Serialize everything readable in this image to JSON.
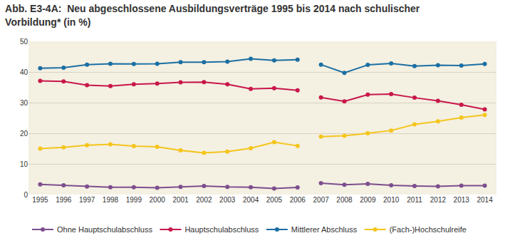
{
  "chart_data": {
    "type": "line",
    "title": [
      "Abb. E3-4A:  Neu abgeschlossene Ausbildungsverträge 1995 bis 2014 nach schulischer",
      "Vorbildung* (in %)"
    ],
    "categories": [
      "1995",
      "1996",
      "1997",
      "1998",
      "1999",
      "2000",
      "2001",
      "2002",
      "2003",
      "2004",
      "2005",
      "2006",
      "2007",
      "2008",
      "2009",
      "2010",
      "2011",
      "2012",
      "2013",
      "2014"
    ],
    "series": [
      {
        "name": "Ohne Hauptschulabschluss",
        "color": "#7d4e8e",
        "values": [
          3.3,
          3.0,
          2.6,
          2.4,
          2.4,
          2.2,
          2.5,
          2.8,
          2.5,
          2.4,
          2.0,
          2.3,
          null,
          null,
          null,
          null,
          null,
          null,
          null,
          null
        ]
      },
      {
        "name": "Ohne Hauptschulabschluss",
        "color": "#7d4e8e",
        "values": [
          null,
          null,
          null,
          null,
          null,
          null,
          null,
          null,
          null,
          null,
          null,
          null,
          3.7,
          3.2,
          3.5,
          3.0,
          2.8,
          2.7,
          2.9,
          2.9
        ]
      },
      {
        "name": "Hauptschulabschluss",
        "color": "#c8174b",
        "values": [
          37.1,
          36.9,
          35.7,
          35.4,
          36.0,
          36.2,
          36.6,
          36.7,
          36.0,
          34.5,
          34.7,
          34.0,
          null,
          null,
          null,
          null,
          null,
          null,
          null,
          null
        ]
      },
      {
        "name": "Hauptschulabschluss",
        "color": "#c8174b",
        "values": [
          null,
          null,
          null,
          null,
          null,
          null,
          null,
          null,
          null,
          null,
          null,
          null,
          31.7,
          30.4,
          32.6,
          32.8,
          31.6,
          30.6,
          29.3,
          27.8
        ]
      },
      {
        "name": "Mittlerer Abschluss",
        "color": "#1b6fa3",
        "values": [
          41.2,
          41.4,
          42.4,
          42.7,
          42.6,
          42.7,
          43.2,
          43.2,
          43.4,
          44.3,
          43.8,
          44.0,
          null,
          null,
          null,
          null,
          null,
          null,
          null,
          null
        ]
      },
      {
        "name": "Mittlerer Abschluss",
        "color": "#1b6fa3",
        "values": [
          null,
          null,
          null,
          null,
          null,
          null,
          null,
          null,
          null,
          null,
          null,
          null,
          42.4,
          39.7,
          42.3,
          42.8,
          41.9,
          42.2,
          42.1,
          42.6
        ]
      },
      {
        "name": "(Fach-)Hochschulreife",
        "color": "#f5c51c",
        "values": [
          15.0,
          15.4,
          16.1,
          16.4,
          15.8,
          15.6,
          14.4,
          13.6,
          14.0,
          15.1,
          17.1,
          15.9,
          null,
          null,
          null,
          null,
          null,
          null,
          null,
          null
        ]
      },
      {
        "name": "(Fach-)Hochschulreife",
        "color": "#f5c51c",
        "values": [
          null,
          null,
          null,
          null,
          null,
          null,
          null,
          null,
          null,
          null,
          null,
          null,
          18.9,
          19.2,
          20.0,
          20.9,
          22.9,
          23.9,
          25.1,
          26.0
        ]
      }
    ],
    "ylim": [
      0,
      50
    ],
    "yticks": [
      0,
      10,
      20,
      30,
      40,
      50
    ],
    "grid": true,
    "legend": "bottom",
    "marker": "circle"
  }
}
